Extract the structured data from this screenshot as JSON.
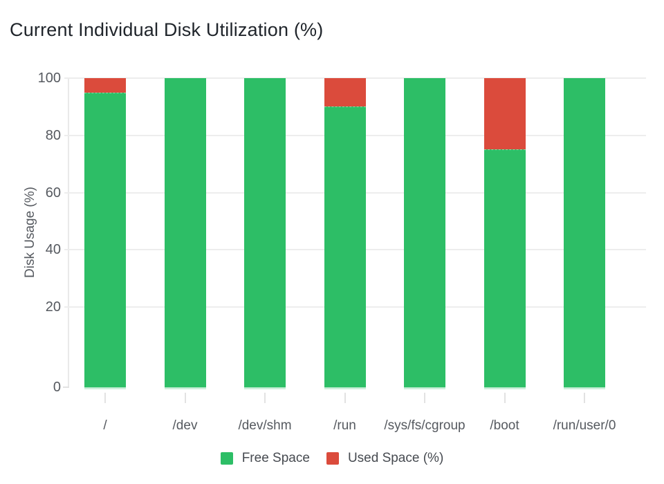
{
  "chart_data": {
    "type": "bar",
    "stacked": true,
    "title": "Current Individual Disk Utilization (%)",
    "ylabel": "Disk Usage (%)",
    "xlabel": "",
    "categories": [
      "/",
      "/dev",
      "/dev/shm",
      "/run",
      "/sys/fs/cgroup",
      "/boot",
      "/run/user/0"
    ],
    "series": [
      {
        "name": "Free Space",
        "color": "#2dbe66",
        "values": [
          95,
          100,
          100,
          90,
          100,
          75,
          100
        ]
      },
      {
        "name": "Used Space (%)",
        "color": "#db4b3c",
        "values": [
          5,
          0,
          0,
          10,
          0,
          25,
          0
        ]
      }
    ],
    "ylim": [
      0,
      100
    ],
    "yticks": [
      0,
      20,
      40,
      60,
      80,
      100
    ],
    "grid": "horizontal",
    "legend_position": "bottom",
    "colors": {
      "gridline": "#ededed",
      "axis_line": "#e9e9e9",
      "tick_text": "#55595f",
      "title_text": "#20252b",
      "legend_text": "#464a50"
    }
  }
}
